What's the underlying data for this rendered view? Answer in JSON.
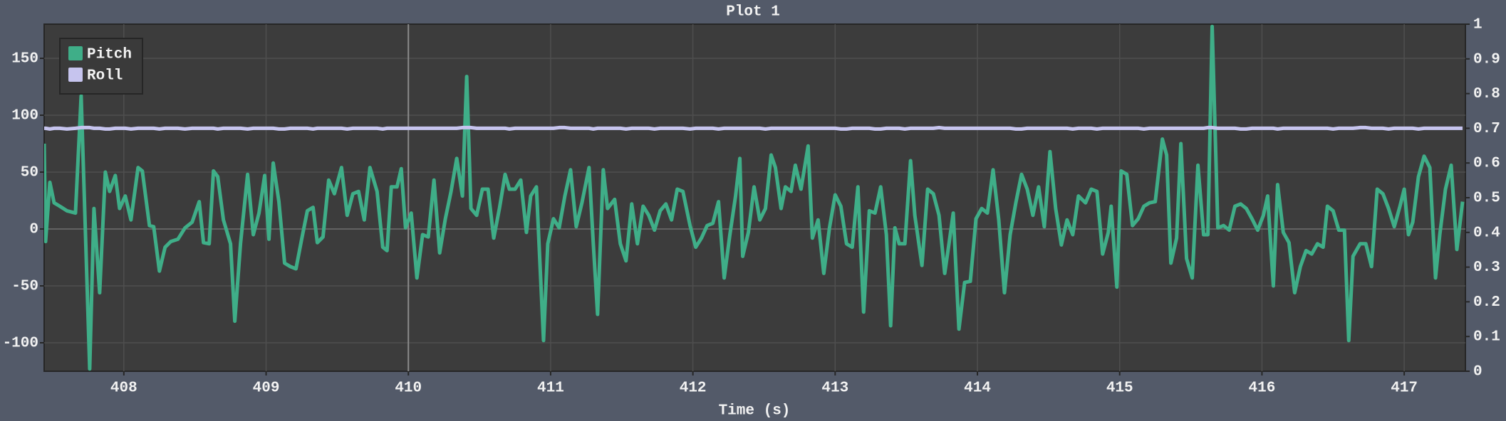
{
  "chart_data": {
    "type": "line",
    "title": "Plot 1",
    "x_label": "Time (s)",
    "xlim": [
      407.44,
      417.43
    ],
    "xticks": [
      408,
      409,
      410,
      411,
      412,
      413,
      414,
      415,
      416,
      417
    ],
    "ylim": [
      -125,
      180
    ],
    "yticks": [
      -100,
      -50,
      0,
      50,
      100,
      150
    ],
    "y2lim": [
      0,
      1
    ],
    "y2ticks": [
      0,
      0.1,
      0.2,
      0.3,
      0.4,
      0.5,
      0.6,
      0.7,
      0.8,
      0.9,
      1
    ],
    "grid": true,
    "cursor_x": 410,
    "legend": "upper left",
    "x": [
      407.44,
      407.45,
      407.48,
      407.51,
      407.55,
      407.6,
      407.66,
      407.7,
      407.76,
      407.79,
      407.83,
      407.87,
      407.9,
      407.94,
      407.97,
      408.01,
      408.05,
      408.1,
      408.13,
      408.18,
      408.21,
      408.25,
      408.29,
      408.33,
      408.38,
      408.43,
      408.48,
      408.53,
      408.56,
      408.6,
      408.63,
      408.66,
      408.7,
      408.75,
      408.78,
      408.82,
      408.87,
      408.91,
      408.95,
      408.99,
      409.02,
      409.05,
      409.09,
      409.13,
      409.17,
      409.21,
      409.25,
      409.29,
      409.33,
      409.36,
      409.4,
      409.44,
      409.48,
      409.53,
      409.57,
      409.61,
      409.65,
      409.69,
      409.73,
      409.78,
      409.82,
      409.85,
      409.88,
      409.92,
      409.95,
      409.98,
      410.02,
      410.06,
      410.1,
      410.14,
      410.18,
      410.22,
      410.26,
      410.3,
      410.34,
      410.38,
      410.41,
      410.44,
      410.48,
      410.52,
      410.56,
      410.6,
      410.64,
      410.68,
      410.71,
      410.75,
      410.79,
      410.83,
      410.86,
      410.9,
      410.95,
      410.98,
      411.02,
      411.06,
      411.1,
      411.14,
      411.18,
      411.22,
      411.27,
      411.3,
      411.33,
      411.37,
      411.4,
      411.45,
      411.49,
      411.53,
      411.57,
      411.61,
      411.65,
      411.69,
      411.73,
      411.77,
      411.81,
      411.85,
      411.89,
      411.93,
      411.98,
      412.02,
      412.06,
      412.1,
      412.14,
      412.18,
      412.22,
      412.26,
      412.3,
      412.33,
      412.35,
      412.39,
      412.43,
      412.47,
      412.51,
      412.55,
      412.58,
      412.62,
      412.65,
      412.69,
      412.72,
      412.76,
      412.81,
      412.84,
      412.88,
      412.92,
      412.96,
      413.0,
      413.04,
      413.08,
      413.12,
      413.16,
      413.2,
      413.24,
      413.28,
      413.32,
      413.36,
      413.39,
      413.42,
      413.45,
      413.49,
      413.53,
      413.56,
      413.61,
      413.65,
      413.69,
      413.73,
      413.77,
      413.8,
      413.83,
      413.87,
      413.91,
      413.95,
      413.99,
      414.03,
      414.07,
      414.11,
      414.15,
      414.19,
      414.23,
      414.27,
      414.31,
      414.35,
      414.39,
      414.43,
      414.47,
      414.51,
      414.55,
      414.59,
      414.63,
      414.67,
      414.71,
      414.76,
      414.8,
      414.84,
      414.88,
      414.92,
      414.94,
      414.98,
      415.01,
      415.05,
      415.09,
      415.13,
      415.17,
      415.21,
      415.25,
      415.3,
      415.33,
      415.36,
      415.4,
      415.43,
      415.47,
      415.51,
      415.55,
      415.59,
      415.62,
      415.65,
      415.69,
      415.73,
      415.77,
      415.81,
      415.85,
      415.89,
      415.93,
      415.97,
      416.01,
      416.04,
      416.08,
      416.11,
      416.15,
      416.19,
      416.23,
      416.27,
      416.31,
      416.35,
      416.39,
      416.43,
      416.46,
      416.5,
      416.54,
      416.58,
      416.61,
      416.64,
      416.69,
      416.73,
      416.77,
      416.81,
      416.85,
      416.89,
      416.93,
      416.97,
      417.0,
      417.03,
      417.06,
      417.1,
      417.14,
      417.18,
      417.22,
      417.25,
      417.29,
      417.33,
      417.37,
      417.41
    ],
    "series": [
      {
        "name": "Pitch",
        "color": "#3fae88",
        "values": [
          75,
          -11,
          41,
          23,
          20,
          16,
          14,
          117,
          -123,
          18,
          -56,
          50,
          33,
          47,
          18,
          29,
          8,
          54,
          51,
          3,
          2,
          -37,
          -16,
          -11,
          -9,
          1,
          6,
          24,
          -12,
          -13,
          51,
          46,
          8,
          -13,
          -81,
          -13,
          48,
          -5,
          14,
          47,
          -9,
          58,
          24,
          -30,
          -33,
          -35,
          -9,
          16,
          19,
          -12,
          -7,
          43,
          31,
          54,
          12,
          31,
          33,
          8,
          54,
          33,
          -16,
          -19,
          37,
          37,
          53,
          1,
          14,
          -43,
          -5,
          -7,
          43,
          -21,
          9,
          33,
          62,
          29,
          134,
          18,
          12,
          35,
          35,
          -8,
          18,
          48,
          35,
          35,
          43,
          -3,
          29,
          37,
          -98,
          -13,
          9,
          1,
          29,
          52,
          2,
          23,
          54,
          -13,
          -75,
          52,
          18,
          26,
          -13,
          -28,
          22,
          -13,
          20,
          12,
          -1,
          16,
          22,
          8,
          35,
          33,
          3,
          -16,
          -8,
          3,
          5,
          24,
          -43,
          -5,
          29,
          62,
          -24,
          -3,
          37,
          8,
          18,
          65,
          54,
          18,
          37,
          33,
          56,
          35,
          73,
          -8,
          8,
          -39,
          1,
          30,
          20,
          -13,
          -16,
          37,
          -73,
          16,
          14,
          37,
          -5,
          -85,
          1,
          -13,
          -13,
          60,
          12,
          -32,
          35,
          31,
          12,
          -39,
          -13,
          14,
          -88,
          -47,
          -46,
          9,
          18,
          14,
          52,
          8,
          -56,
          -5,
          23,
          48,
          35,
          12,
          37,
          2,
          68,
          18,
          -14,
          8,
          -5,
          29,
          23,
          35,
          33,
          -22,
          -3,
          20,
          -51,
          51,
          48,
          3,
          9,
          20,
          23,
          24,
          79,
          65,
          -30,
          -8,
          75,
          -26,
          -43,
          56,
          -5,
          -5,
          178,
          1,
          3,
          -1,
          20,
          22,
          18,
          9,
          -1,
          12,
          29,
          -50,
          39,
          -3,
          -12,
          -56,
          -33,
          -19,
          -22,
          -13,
          -16,
          20,
          16,
          -1,
          -1,
          -98,
          -24,
          -13,
          -13,
          -33,
          35,
          31,
          18,
          2,
          20,
          35,
          -5,
          6,
          46,
          64,
          54,
          -43,
          -5,
          35,
          56,
          -18,
          24
        ]
      },
      {
        "name": "Roll",
        "color": "#c6c4ee",
        "axis": "y2",
        "values": [
          0.7,
          0.7,
          0.698,
          0.7,
          0.7,
          0.698,
          0.7,
          0.702,
          0.702,
          0.7,
          0.7,
          0.698,
          0.698,
          0.7,
          0.7,
          0.7,
          0.698,
          0.7,
          0.7,
          0.7,
          0.7,
          0.698,
          0.7,
          0.7,
          0.7,
          0.698,
          0.7,
          0.7,
          0.7,
          0.7,
          0.7,
          0.698,
          0.7,
          0.7,
          0.7,
          0.7,
          0.698,
          0.7,
          0.7,
          0.7,
          0.7,
          0.7,
          0.698,
          0.698,
          0.7,
          0.7,
          0.7,
          0.7,
          0.698,
          0.7,
          0.7,
          0.7,
          0.7,
          0.7,
          0.698,
          0.7,
          0.7,
          0.7,
          0.7,
          0.7,
          0.698,
          0.7,
          0.7,
          0.7,
          0.7,
          0.7,
          0.7,
          0.7,
          0.7,
          0.7,
          0.7,
          0.7,
          0.7,
          0.7,
          0.7,
          0.702,
          0.702,
          0.702,
          0.7,
          0.7,
          0.7,
          0.7,
          0.7,
          0.7,
          0.698,
          0.7,
          0.7,
          0.7,
          0.7,
          0.7,
          0.7,
          0.7,
          0.7,
          0.702,
          0.702,
          0.7,
          0.7,
          0.7,
          0.7,
          0.698,
          0.7,
          0.7,
          0.7,
          0.7,
          0.7,
          0.698,
          0.7,
          0.7,
          0.7,
          0.7,
          0.698,
          0.7,
          0.7,
          0.7,
          0.7,
          0.7,
          0.698,
          0.7,
          0.7,
          0.7,
          0.7,
          0.698,
          0.7,
          0.7,
          0.7,
          0.7,
          0.7,
          0.7,
          0.7,
          0.7,
          0.698,
          0.7,
          0.7,
          0.7,
          0.7,
          0.7,
          0.7,
          0.7,
          0.7,
          0.7,
          0.7,
          0.7,
          0.7,
          0.7,
          0.698,
          0.698,
          0.7,
          0.7,
          0.7,
          0.7,
          0.698,
          0.698,
          0.7,
          0.7,
          0.7,
          0.7,
          0.698,
          0.7,
          0.7,
          0.7,
          0.7,
          0.7,
          0.702,
          0.7,
          0.7,
          0.7,
          0.7,
          0.7,
          0.7,
          0.7,
          0.7,
          0.7,
          0.7,
          0.7,
          0.7,
          0.7,
          0.698,
          0.698,
          0.7,
          0.7,
          0.7,
          0.7,
          0.7,
          0.7,
          0.7,
          0.7,
          0.698,
          0.7,
          0.7,
          0.7,
          0.698,
          0.7,
          0.7,
          0.7,
          0.7,
          0.7,
          0.7,
          0.7,
          0.7,
          0.698,
          0.7,
          0.7,
          0.7,
          0.7,
          0.7,
          0.7,
          0.7,
          0.7,
          0.7,
          0.7,
          0.7,
          0.702,
          0.702,
          0.7,
          0.7,
          0.7,
          0.7,
          0.698,
          0.698,
          0.7,
          0.7,
          0.7,
          0.7,
          0.7,
          0.698,
          0.7,
          0.7,
          0.7,
          0.7,
          0.7,
          0.7,
          0.7,
          0.7,
          0.7,
          0.698,
          0.7,
          0.7,
          0.7,
          0.7,
          0.702,
          0.702,
          0.7,
          0.7,
          0.7,
          0.698,
          0.7,
          0.7,
          0.7,
          0.7,
          0.7,
          0.698,
          0.7,
          0.7,
          0.7,
          0.7,
          0.7,
          0.7,
          0.7,
          0.7
        ]
      }
    ]
  }
}
